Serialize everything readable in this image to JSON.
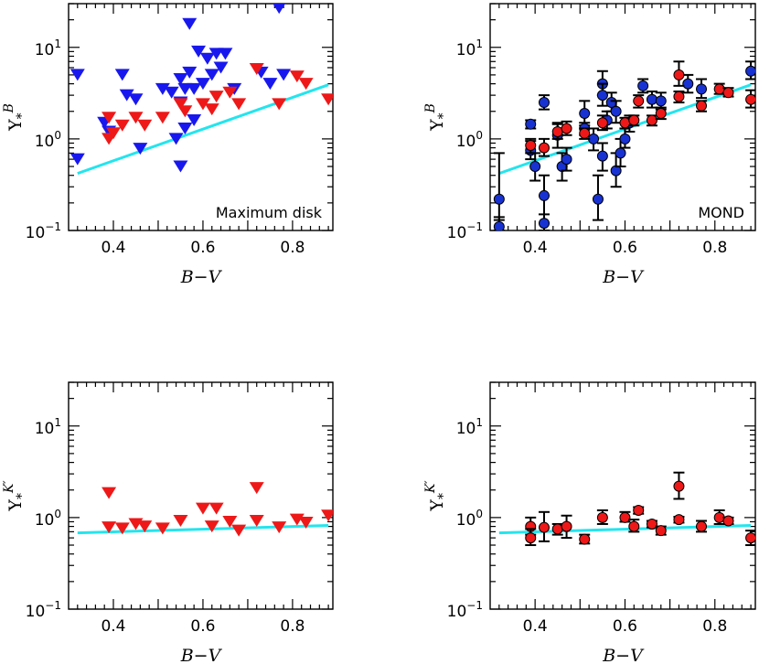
{
  "chart_data": [
    {
      "type": "scatter",
      "marker": "triangle-down",
      "annotation": "Maximum disk",
      "xlabel": "B−V",
      "ylabel_symbol": "Υ",
      "ylabel_sub": "*",
      "ylabel_sup": "B",
      "xlim": [
        0.3,
        0.89
      ],
      "ylim": [
        0.1,
        30
      ],
      "yscale": "log",
      "xticks": [
        "0.4",
        "0.6",
        "0.8"
      ],
      "yticks": [
        {
          "base": "10",
          "exp": "−1"
        },
        {
          "base": "10",
          "exp": "0"
        },
        {
          "base": "10",
          "exp": "1"
        }
      ],
      "fit_line": {
        "x": [
          0.32,
          0.88
        ],
        "y": [
          0.42,
          3.9
        ],
        "color": "#22e5ee"
      },
      "series": [
        {
          "color": "#1818ee",
          "points": [
            [
              0.32,
              5.0
            ],
            [
              0.32,
              0.6
            ],
            [
              0.38,
              1.5
            ],
            [
              0.39,
              1.2
            ],
            [
              0.42,
              5.0
            ],
            [
              0.43,
              3.0
            ],
            [
              0.45,
              2.7
            ],
            [
              0.46,
              0.78
            ],
            [
              0.51,
              3.5
            ],
            [
              0.53,
              3.2
            ],
            [
              0.54,
              1.0
            ],
            [
              0.55,
              0.5
            ],
            [
              0.55,
              2.5
            ],
            [
              0.55,
              4.5
            ],
            [
              0.56,
              3.5
            ],
            [
              0.56,
              1.3
            ],
            [
              0.57,
              5.3
            ],
            [
              0.57,
              18.0
            ],
            [
              0.58,
              3.5
            ],
            [
              0.58,
              1.6
            ],
            [
              0.59,
              9.0
            ],
            [
              0.6,
              4.0
            ],
            [
              0.61,
              7.5
            ],
            [
              0.62,
              5.0
            ],
            [
              0.63,
              8.5
            ],
            [
              0.64,
              6.0
            ],
            [
              0.65,
              8.5
            ],
            [
              0.67,
              3.5
            ],
            [
              0.73,
              5.3
            ],
            [
              0.75,
              4.0
            ],
            [
              0.77,
              27.0
            ],
            [
              0.78,
              5.0
            ]
          ]
        },
        {
          "color": "#ee1818",
          "points": [
            [
              0.39,
              1.7
            ],
            [
              0.39,
              1.0
            ],
            [
              0.4,
              1.15
            ],
            [
              0.42,
              1.4
            ],
            [
              0.45,
              1.7
            ],
            [
              0.47,
              1.4
            ],
            [
              0.51,
              1.7
            ],
            [
              0.55,
              2.4
            ],
            [
              0.56,
              2.0
            ],
            [
              0.6,
              2.4
            ],
            [
              0.62,
              2.1
            ],
            [
              0.63,
              2.9
            ],
            [
              0.66,
              3.2
            ],
            [
              0.68,
              2.4
            ],
            [
              0.72,
              5.8
            ],
            [
              0.77,
              2.4
            ],
            [
              0.81,
              4.8
            ],
            [
              0.83,
              4.0
            ],
            [
              0.88,
              2.7
            ]
          ]
        }
      ]
    },
    {
      "type": "scatter",
      "marker": "circle-errorbar",
      "annotation": "MOND",
      "xlabel": "B−V",
      "ylabel_symbol": "Υ",
      "ylabel_sub": "*",
      "ylabel_sup": "B",
      "xlim": [
        0.3,
        0.89
      ],
      "ylim": [
        0.1,
        30
      ],
      "yscale": "log",
      "xticks": [
        "0.4",
        "0.6",
        "0.8"
      ],
      "yticks": [
        {
          "base": "10",
          "exp": "−1"
        },
        {
          "base": "10",
          "exp": "0"
        },
        {
          "base": "10",
          "exp": "1"
        }
      ],
      "fit_line": {
        "x": [
          0.32,
          0.88
        ],
        "y": [
          0.42,
          3.9
        ],
        "color": "#22e5ee"
      },
      "series": [
        {
          "color": "#1832d2",
          "points": [
            [
              0.32,
              0.22,
              0.13,
              0.7
            ],
            [
              0.32,
              0.11,
              0.1,
              0.14
            ],
            [
              0.39,
              1.45,
              1.3,
              1.6
            ],
            [
              0.39,
              0.75,
              0.6,
              0.95
            ],
            [
              0.4,
              0.5,
              0.35,
              0.7
            ],
            [
              0.42,
              0.24,
              0.12,
              0.4
            ],
            [
              0.42,
              0.12,
              0.1,
              0.15
            ],
            [
              0.42,
              2.5,
              2.1,
              3.0
            ],
            [
              0.45,
              1.1,
              0.8,
              1.5
            ],
            [
              0.46,
              0.5,
              0.35,
              0.7
            ],
            [
              0.47,
              0.6,
              0.45,
              0.8
            ],
            [
              0.51,
              1.9,
              1.4,
              2.6
            ],
            [
              0.51,
              1.3,
              1.1,
              1.5
            ],
            [
              0.53,
              1.0,
              0.75,
              1.3
            ],
            [
              0.54,
              0.22,
              0.13,
              0.4
            ],
            [
              0.55,
              4.0,
              3.0,
              5.5
            ],
            [
              0.55,
              3.0,
              2.3,
              4.0
            ],
            [
              0.55,
              0.65,
              0.45,
              0.9
            ],
            [
              0.56,
              1.6,
              1.3,
              2.0
            ],
            [
              0.57,
              2.5,
              2.0,
              3.2
            ],
            [
              0.58,
              2.0,
              1.5,
              2.6
            ],
            [
              0.58,
              0.45,
              0.3,
              0.7
            ],
            [
              0.59,
              0.7,
              0.5,
              1.0
            ],
            [
              0.6,
              1.0,
              0.8,
              1.3
            ],
            [
              0.61,
              1.5,
              1.2,
              1.8
            ],
            [
              0.64,
              3.8,
              3.2,
              4.5
            ],
            [
              0.66,
              2.7,
              2.2,
              3.3
            ],
            [
              0.68,
              2.6,
              2.1,
              3.2
            ],
            [
              0.74,
              4.0,
              3.2,
              5.0
            ],
            [
              0.77,
              3.5,
              2.8,
              4.5
            ],
            [
              0.88,
              5.5,
              4.5,
              7.0
            ]
          ]
        },
        {
          "color": "#ee1818",
          "points": [
            [
              0.39,
              0.85,
              0.7,
              1.0
            ],
            [
              0.42,
              0.8,
              0.65,
              1.0
            ],
            [
              0.45,
              1.2,
              1.0,
              1.45
            ],
            [
              0.47,
              1.3,
              1.1,
              1.55
            ],
            [
              0.51,
              1.15,
              1.0,
              1.3
            ],
            [
              0.55,
              1.5,
              1.25,
              1.8
            ],
            [
              0.6,
              1.5,
              1.3,
              1.7
            ],
            [
              0.62,
              1.6,
              1.4,
              1.8
            ],
            [
              0.63,
              2.6,
              2.2,
              3.0
            ],
            [
              0.66,
              1.6,
              1.4,
              1.8
            ],
            [
              0.68,
              1.9,
              1.65,
              2.2
            ],
            [
              0.72,
              2.9,
              2.5,
              3.3
            ],
            [
              0.72,
              5.0,
              3.8,
              7.0
            ],
            [
              0.77,
              2.3,
              2.0,
              2.6
            ],
            [
              0.81,
              3.5,
              3.1,
              4.0
            ],
            [
              0.83,
              3.2,
              2.9,
              3.6
            ],
            [
              0.88,
              2.7,
              2.2,
              3.4
            ]
          ]
        }
      ]
    },
    {
      "type": "scatter",
      "marker": "triangle-down",
      "annotation": "",
      "xlabel": "B−V",
      "ylabel_symbol": "Υ",
      "ylabel_sub": "*",
      "ylabel_sup": "K′",
      "xlim": [
        0.3,
        0.89
      ],
      "ylim": [
        0.1,
        30
      ],
      "yscale": "log",
      "xticks": [
        "0.4",
        "0.6",
        "0.8"
      ],
      "yticks": [
        {
          "base": "10",
          "exp": "−1"
        },
        {
          "base": "10",
          "exp": "0"
        },
        {
          "base": "10",
          "exp": "1"
        }
      ],
      "fit_line": {
        "x": [
          0.32,
          0.88
        ],
        "y": [
          0.68,
          0.82
        ],
        "color": "#22e5ee"
      },
      "series": [
        {
          "color": "#ee1818",
          "points": [
            [
              0.39,
              1.85
            ],
            [
              0.39,
              0.78
            ],
            [
              0.42,
              0.76
            ],
            [
              0.45,
              0.85
            ],
            [
              0.47,
              0.8
            ],
            [
              0.51,
              0.76
            ],
            [
              0.55,
              0.92
            ],
            [
              0.6,
              1.25
            ],
            [
              0.62,
              0.8
            ],
            [
              0.63,
              1.25
            ],
            [
              0.66,
              0.9
            ],
            [
              0.68,
              0.72
            ],
            [
              0.72,
              2.1
            ],
            [
              0.72,
              0.92
            ],
            [
              0.77,
              0.78
            ],
            [
              0.81,
              0.95
            ],
            [
              0.83,
              0.88
            ],
            [
              0.88,
              1.05
            ]
          ]
        }
      ]
    },
    {
      "type": "scatter",
      "marker": "circle-errorbar",
      "annotation": "",
      "xlabel": "B−V",
      "ylabel_symbol": "Υ",
      "ylabel_sub": "*",
      "ylabel_sup": "K′",
      "xlim": [
        0.3,
        0.89
      ],
      "ylim": [
        0.1,
        30
      ],
      "yscale": "log",
      "xticks": [
        "0.4",
        "0.6",
        "0.8"
      ],
      "yticks": [
        {
          "base": "10",
          "exp": "−1"
        },
        {
          "base": "10",
          "exp": "0"
        },
        {
          "base": "10",
          "exp": "1"
        }
      ],
      "fit_line": {
        "x": [
          0.32,
          0.88
        ],
        "y": [
          0.68,
          0.82
        ],
        "color": "#22e5ee"
      },
      "series": [
        {
          "color": "#ee1818",
          "points": [
            [
              0.39,
              0.8,
              0.65,
              1.0
            ],
            [
              0.39,
              0.6,
              0.5,
              0.75
            ],
            [
              0.42,
              0.78,
              0.55,
              1.15
            ],
            [
              0.45,
              0.75,
              0.65,
              0.85
            ],
            [
              0.47,
              0.8,
              0.6,
              1.05
            ],
            [
              0.51,
              0.58,
              0.52,
              0.65
            ],
            [
              0.55,
              1.0,
              0.85,
              1.2
            ],
            [
              0.6,
              1.0,
              0.9,
              1.15
            ],
            [
              0.62,
              0.8,
              0.7,
              0.95
            ],
            [
              0.63,
              1.2,
              1.1,
              1.3
            ],
            [
              0.66,
              0.85,
              0.78,
              0.92
            ],
            [
              0.68,
              0.72,
              0.65,
              0.8
            ],
            [
              0.72,
              0.95,
              0.88,
              1.02
            ],
            [
              0.72,
              2.2,
              1.6,
              3.1
            ],
            [
              0.77,
              0.8,
              0.7,
              0.92
            ],
            [
              0.81,
              1.0,
              0.85,
              1.2
            ],
            [
              0.83,
              0.92,
              0.85,
              1.0
            ],
            [
              0.88,
              0.6,
              0.5,
              0.72
            ]
          ]
        }
      ]
    }
  ]
}
